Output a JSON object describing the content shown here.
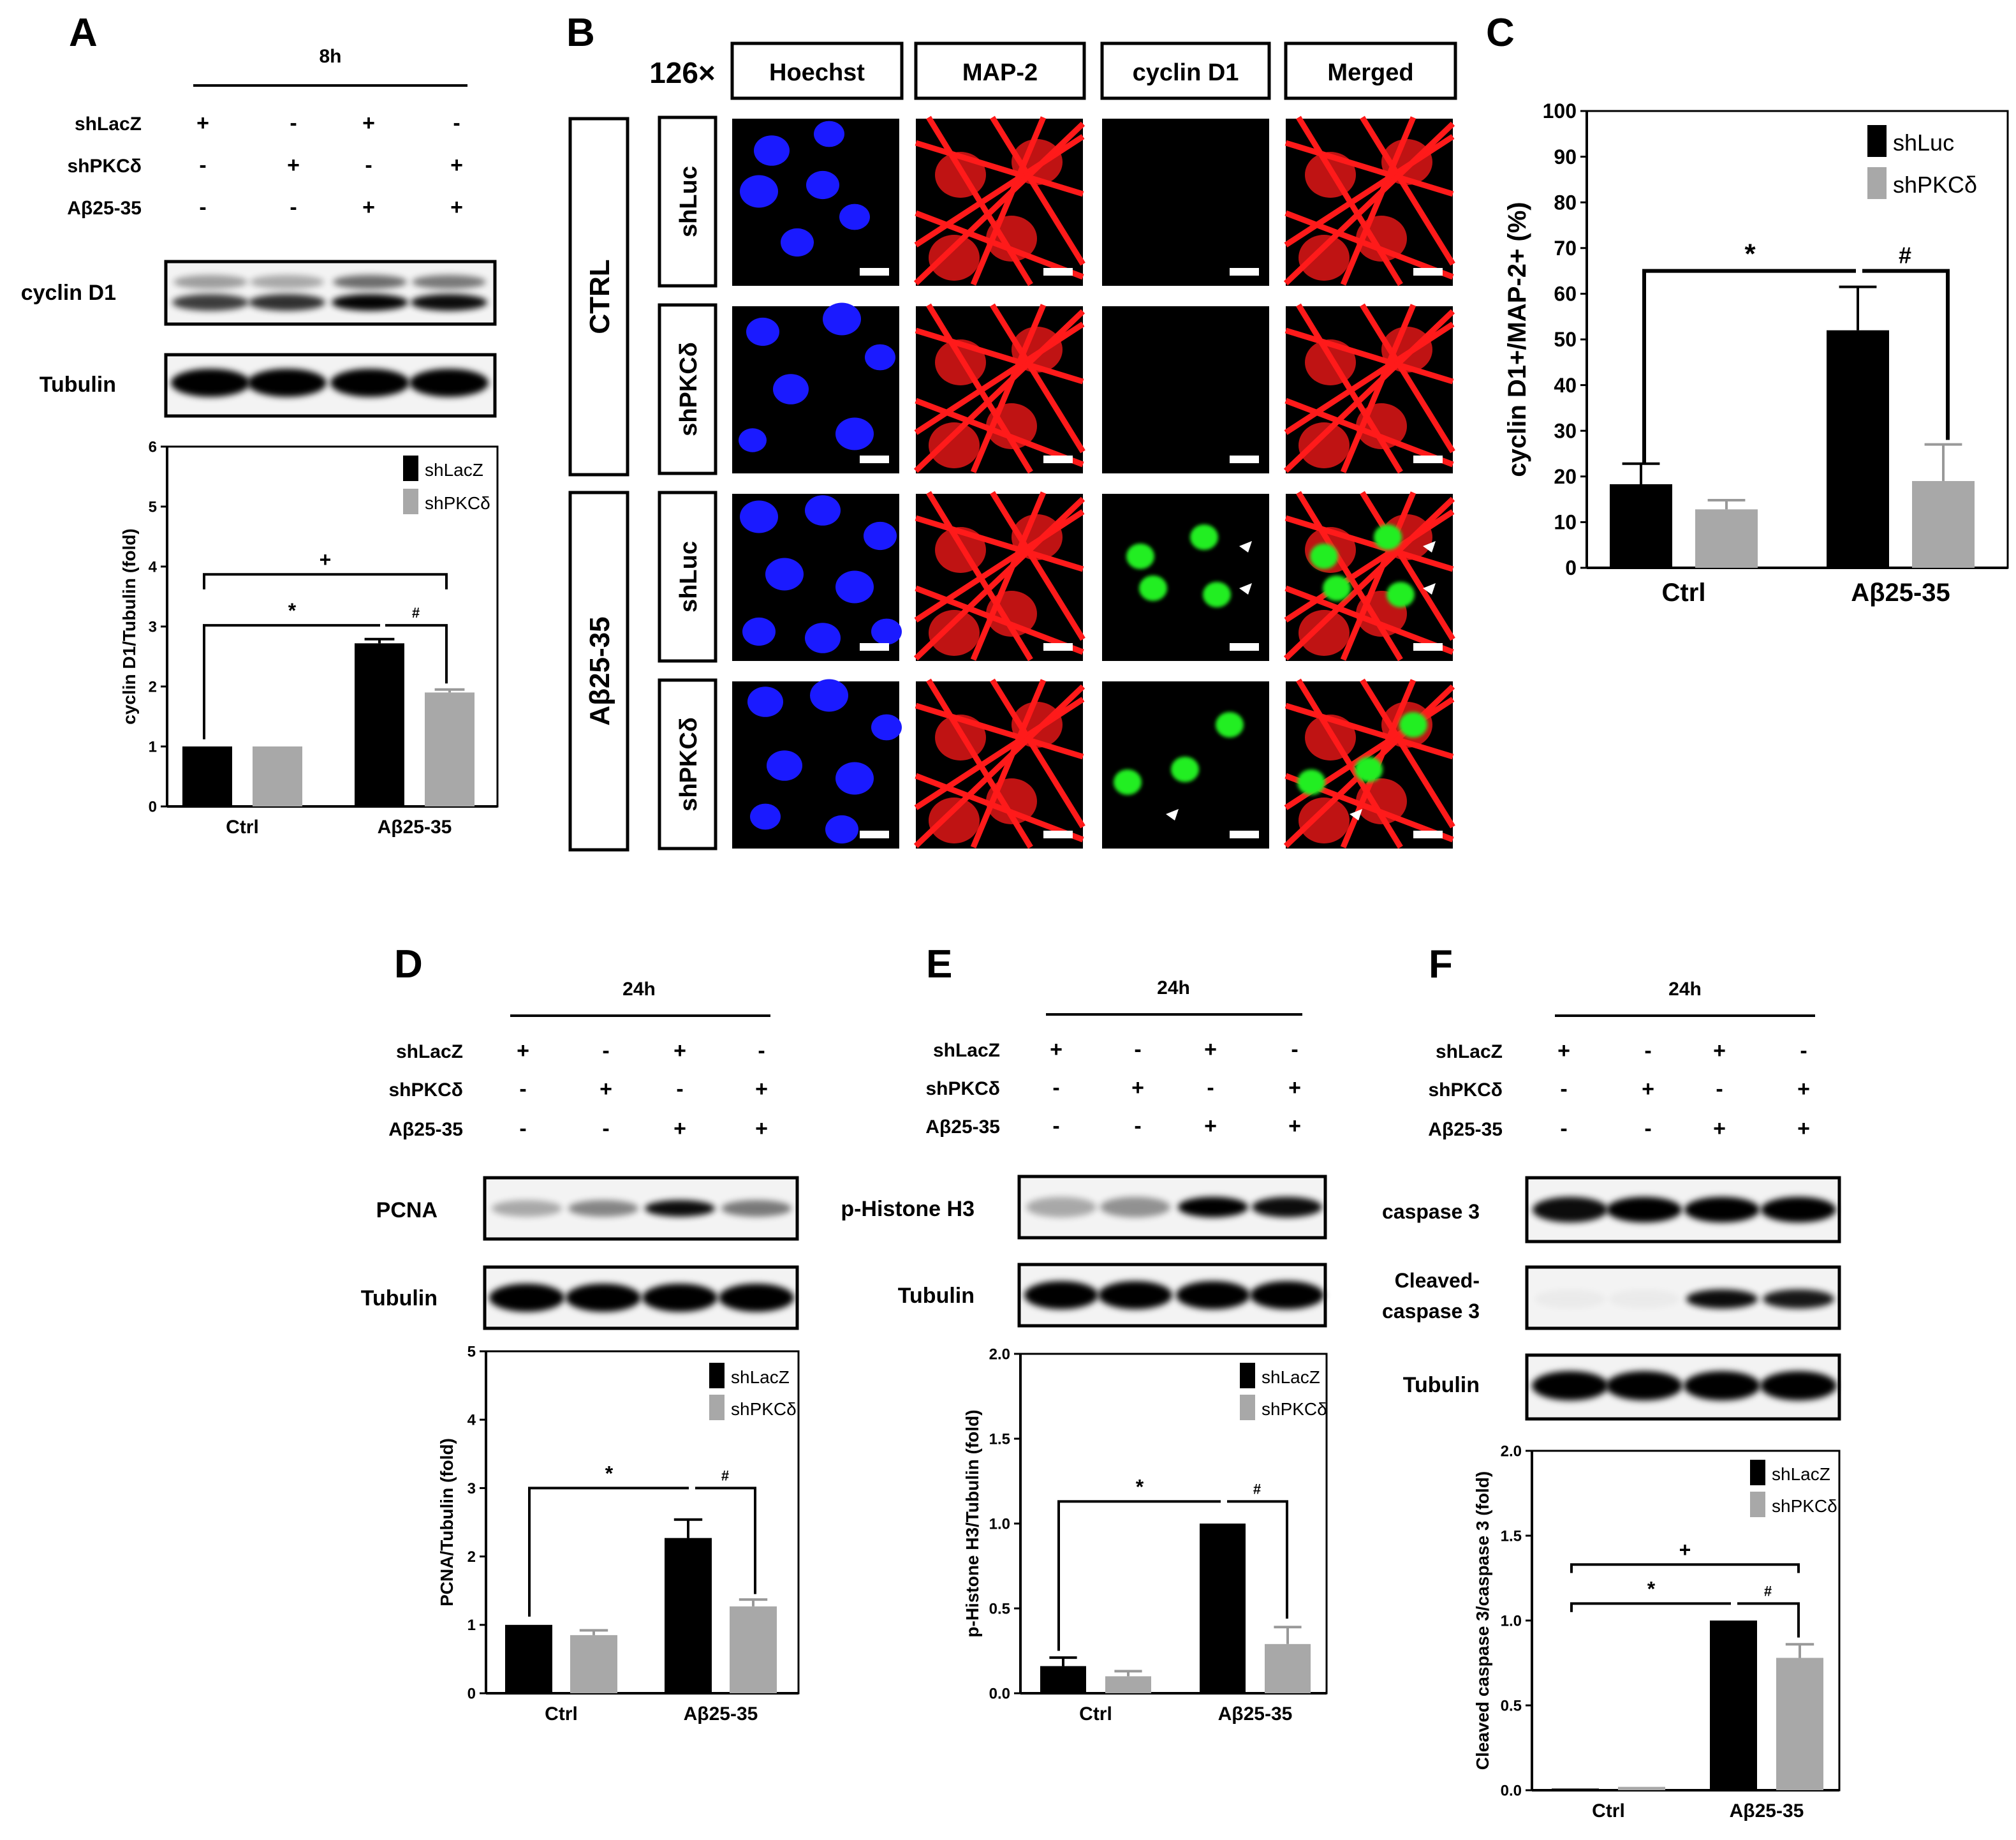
{
  "panels": {
    "A": {
      "letter": "A",
      "time": "8h",
      "row_labels": [
        "shLacZ",
        "shPKCδ",
        "Aβ25-35"
      ],
      "signs": [
        [
          "+",
          "-",
          "+",
          "-"
        ],
        [
          "-",
          "+",
          "-",
          "+"
        ],
        [
          "-",
          "-",
          "+",
          "+"
        ]
      ],
      "blot_labels": [
        "cyclin D1",
        "Tubulin"
      ]
    },
    "B": {
      "letter": "B",
      "magnification": "126×",
      "channels": [
        "Hoechst",
        "MAP-2",
        "cyclin D1",
        "Merged"
      ],
      "groups": [
        "CTRL",
        "Aβ25-35"
      ],
      "rows": [
        "shLuc",
        "shPKCδ",
        "shLuc",
        "shPKCδ"
      ]
    },
    "C": {
      "letter": "C"
    },
    "D": {
      "letter": "D",
      "time": "24h",
      "row_labels": [
        "shLacZ",
        "shPKCδ",
        "Aβ25-35"
      ],
      "signs": [
        [
          "+",
          "-",
          "+",
          "-"
        ],
        [
          "-",
          "+",
          "-",
          "+"
        ],
        [
          "-",
          "-",
          "+",
          "+"
        ]
      ],
      "blot_labels": [
        "PCNA",
        "Tubulin"
      ]
    },
    "E": {
      "letter": "E",
      "time": "24h",
      "row_labels": [
        "shLacZ",
        "shPKCδ",
        "Aβ25-35"
      ],
      "signs": [
        [
          "+",
          "-",
          "+",
          "-"
        ],
        [
          "-",
          "+",
          "-",
          "+"
        ],
        [
          "-",
          "-",
          "+",
          "+"
        ]
      ],
      "blot_labels": [
        "p-Histone H3",
        "Tubulin"
      ]
    },
    "F": {
      "letter": "F",
      "time": "24h",
      "row_labels": [
        "shLacZ",
        "shPKCδ",
        "Aβ25-35"
      ],
      "signs": [
        [
          "+",
          "-",
          "+",
          "-"
        ],
        [
          "-",
          "+",
          "-",
          "+"
        ],
        [
          "-",
          "-",
          "+",
          "+"
        ]
      ],
      "blot_labels": [
        "caspase 3",
        "Cleaved-",
        "caspase 3",
        "Tubulin"
      ]
    }
  },
  "colors": {
    "black_bar": "#000000",
    "gray_bar": "#a8a8a8",
    "nuclei": "#1a1aff",
    "map2": "#ff1a1a",
    "cyclin": "#22ee22"
  },
  "chart_data": [
    {
      "panel": "A",
      "type": "bar",
      "categories": [
        "Ctrl",
        "Aβ25-35"
      ],
      "series": [
        {
          "name": "shLacZ",
          "values": [
            1.0,
            2.72
          ],
          "errors": [
            0.0,
            0.07
          ]
        },
        {
          "name": "shPKCδ",
          "values": [
            1.0,
            1.9
          ],
          "errors": [
            0.0,
            0.05
          ]
        }
      ],
      "ylabel": "cyclin D1/Tubulin (fold)",
      "ylim": [
        0,
        6
      ],
      "yticks": [
        0,
        1,
        2,
        3,
        4,
        5,
        6
      ],
      "significance": [
        "+",
        "*",
        "#"
      ]
    },
    {
      "panel": "C",
      "type": "bar",
      "categories": [
        "Ctrl",
        "Aβ25-35"
      ],
      "series": [
        {
          "name": "shLuc",
          "values": [
            18.3,
            52.0
          ],
          "errors": [
            4.5,
            9.5
          ]
        },
        {
          "name": "shPKCδ",
          "values": [
            12.8,
            19.0
          ],
          "errors": [
            2.0,
            8.0
          ]
        }
      ],
      "ylabel": "cyclin D1+/MAP-2+ (%)",
      "ylim": [
        0,
        100
      ],
      "yticks": [
        0,
        10,
        20,
        30,
        40,
        50,
        60,
        70,
        80,
        90,
        100
      ],
      "significance": [
        "*",
        "#"
      ]
    },
    {
      "panel": "D",
      "type": "bar",
      "categories": [
        "Ctrl",
        "Aβ25-35"
      ],
      "series": [
        {
          "name": "shLacZ",
          "values": [
            1.0,
            2.27
          ],
          "errors": [
            0.0,
            0.27
          ]
        },
        {
          "name": "shPKCδ",
          "values": [
            0.85,
            1.27
          ],
          "errors": [
            0.07,
            0.1
          ]
        }
      ],
      "ylabel": "PCNA/Tubulin (fold)",
      "ylim": [
        0,
        5
      ],
      "yticks": [
        0,
        1,
        2,
        3,
        4,
        5
      ],
      "significance": [
        "*",
        "#"
      ]
    },
    {
      "panel": "E",
      "type": "bar",
      "categories": [
        "Ctrl",
        "Aβ25-35"
      ],
      "series": [
        {
          "name": "shLacZ",
          "values": [
            0.16,
            1.0
          ],
          "errors": [
            0.05,
            0.0
          ]
        },
        {
          "name": "shPKCδ",
          "values": [
            0.1,
            0.29
          ],
          "errors": [
            0.03,
            0.1
          ]
        }
      ],
      "ylabel": "p-Histone H3/Tubulin (fold)",
      "ylim": [
        0,
        2
      ],
      "yticks": [
        "0.0",
        "0.5",
        "1.0",
        "1.5",
        "2.0"
      ],
      "significance": [
        "*",
        "#"
      ]
    },
    {
      "panel": "F",
      "type": "bar",
      "categories": [
        "Ctrl",
        "Aβ25-35"
      ],
      "series": [
        {
          "name": "shLacZ",
          "values": [
            0.01,
            1.0
          ],
          "errors": [
            0.0,
            0.0
          ]
        },
        {
          "name": "shPKCδ",
          "values": [
            0.02,
            0.78
          ],
          "errors": [
            0.0,
            0.08
          ]
        }
      ],
      "ylabel": "Cleaved caspase 3/caspase 3 (fold)",
      "ylim": [
        0,
        2
      ],
      "yticks": [
        "0.0",
        "0.5",
        "1.0",
        "1.5",
        "2.0"
      ],
      "significance": [
        "+",
        "*",
        "#"
      ]
    }
  ]
}
